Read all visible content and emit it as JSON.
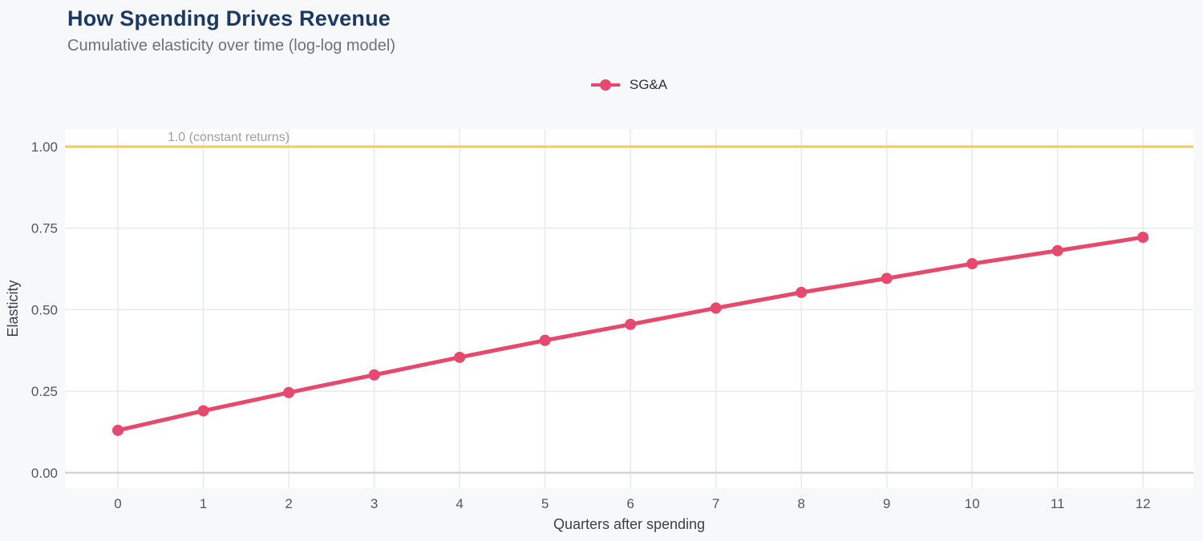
{
  "header": {
    "title": "How Spending Drives Revenue",
    "subtitle": "Cumulative elasticity over time (log-log model)"
  },
  "legend": {
    "items": [
      {
        "label": "SG&A",
        "color": "#e8486d"
      }
    ]
  },
  "chart_data": {
    "type": "line",
    "title": "How Spending Drives Revenue",
    "subtitle": "Cumulative elasticity over time (log-log model)",
    "xlabel": "Quarters after spending",
    "ylabel": "Elasticity",
    "x": [
      0,
      1,
      2,
      3,
      4,
      5,
      6,
      7,
      8,
      9,
      10,
      11,
      12
    ],
    "series": [
      {
        "name": "SG&A",
        "color": "#e8486d",
        "values": [
          0.13,
          0.19,
          0.246,
          0.3,
          0.354,
          0.406,
          0.455,
          0.505,
          0.553,
          0.596,
          0.641,
          0.681,
          0.722
        ]
      }
    ],
    "reference_line": {
      "value": 1.0,
      "label": "1.0 (constant returns)",
      "color": "#f0c95f",
      "label_color": "#9b9ea3"
    },
    "y_ticks": {
      "values": [
        0,
        0.25,
        0.5,
        0.75,
        1.0
      ],
      "labels": [
        "0.00",
        "0.25",
        "0.50",
        "0.75",
        "1.00"
      ]
    },
    "x_ticks": {
      "values": [
        0,
        1,
        2,
        3,
        4,
        5,
        6,
        7,
        8,
        9,
        10,
        11,
        12
      ],
      "labels": [
        "0",
        "1",
        "2",
        "3",
        "4",
        "5",
        "6",
        "7",
        "8",
        "9",
        "10",
        "11",
        "12"
      ]
    },
    "xlim": [
      -0.62,
      12.59
    ],
    "ylim": [
      -0.047,
      1.054
    ],
    "grid": true,
    "legend_position": "top-center"
  },
  "colors": {
    "page_bg": "#f7f8fa",
    "panel_bg": "#ffffff",
    "grid": "#e9eaec",
    "zero_line": "#d2d4d7",
    "title": "#1b3a63",
    "subtitle": "#6d7178",
    "tick_text": "#53565c",
    "axis_title_text": "#3c4047",
    "legend_text": "#2d313b"
  }
}
